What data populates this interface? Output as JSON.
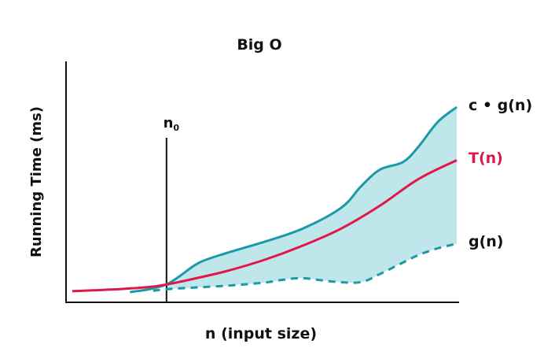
{
  "chart_data": {
    "type": "line",
    "title": "Big O",
    "xlabel": "n (input size)",
    "ylabel": "Running Time (ms)",
    "xlim": [
      0,
      100
    ],
    "ylim": [
      0,
      100
    ],
    "grid": false,
    "legend": "labels at right end of each curve",
    "marker": {
      "label_base": "n",
      "label_sub": "0",
      "x": 24.5
    },
    "shaded_region": {
      "between": [
        "c • g(n)",
        "g(n)"
      ],
      "from_x": 24.5,
      "color": "#bfe6ea"
    },
    "series": [
      {
        "name": "c • g(n)",
        "style": "solid",
        "color": "#1a9aa6",
        "x": [
          15,
          20,
          24.5,
          28,
          33,
          40,
          50,
          60,
          70,
          75,
          80,
          86,
          90,
          95,
          100
        ],
        "y": [
          2.5,
          4,
          6.5,
          11,
          18,
          23,
          29,
          36,
          47,
          58,
          67,
          71,
          79,
          92,
          100
        ]
      },
      {
        "name": "T(n)",
        "style": "solid",
        "color": "#e0184a",
        "x": [
          0,
          10,
          20,
          24.5,
          30,
          40,
          50,
          60,
          70,
          80,
          90,
          100
        ],
        "y": [
          3,
          3.8,
          5.2,
          6.5,
          8.8,
          13.5,
          19.5,
          27,
          36,
          48,
          62,
          72
        ]
      },
      {
        "name": "g(n)",
        "style": "dashed",
        "color": "#1a9aa6",
        "x": [
          21,
          24.5,
          30,
          40,
          50,
          55,
          60,
          68,
          75,
          80,
          85,
          90,
          95,
          100
        ],
        "y": [
          3.2,
          4,
          4.7,
          5.8,
          7.5,
          9,
          9.8,
          8,
          7.7,
          12,
          17,
          22,
          25.5,
          28
        ]
      }
    ]
  }
}
